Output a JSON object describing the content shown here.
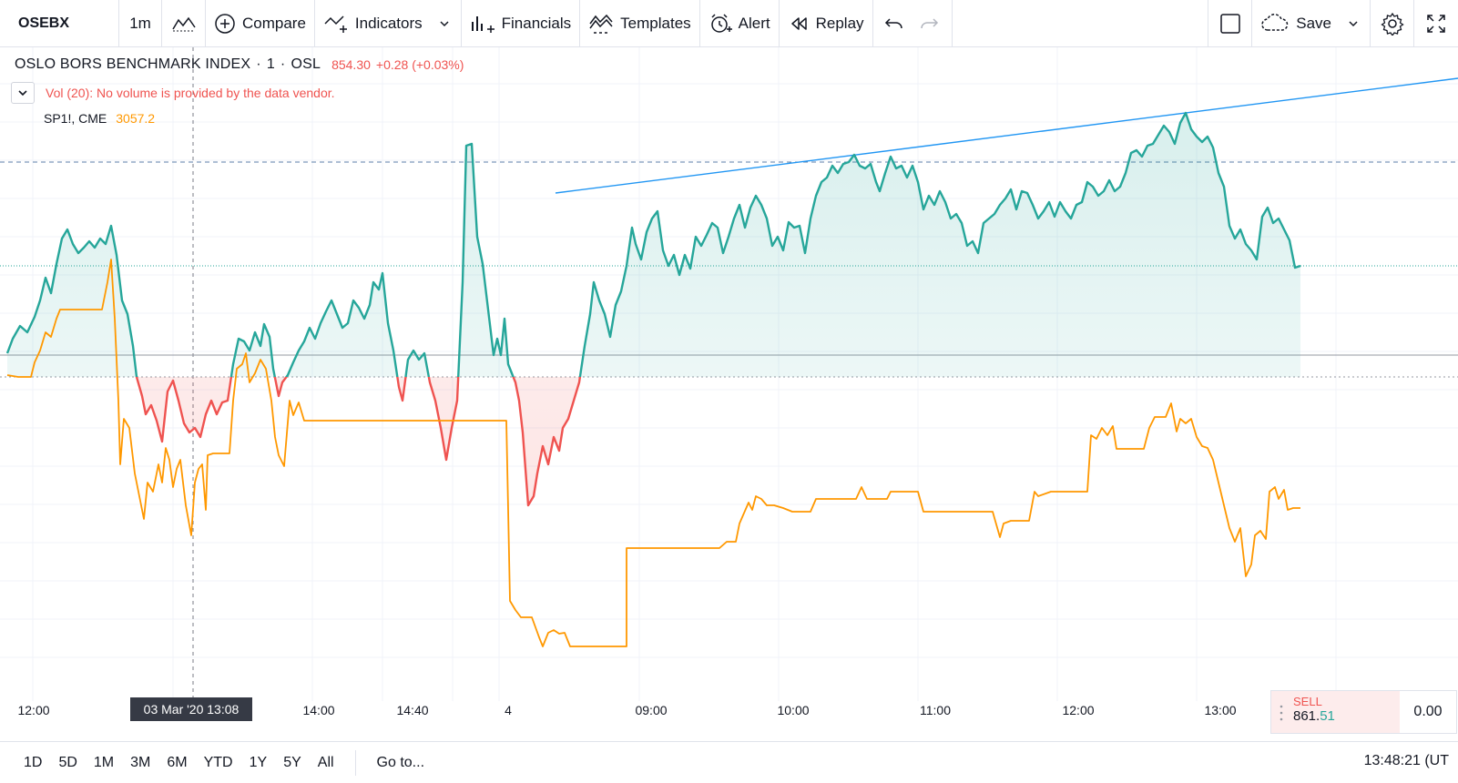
{
  "toolbar": {
    "symbol": "OSEBX",
    "interval": "1m",
    "compare": "Compare",
    "indicators": "Indicators",
    "financials": "Financials",
    "templates": "Templates",
    "alert": "Alert",
    "replay": "Replay",
    "save": "Save"
  },
  "legend": {
    "name": "OSLO BORS BENCHMARK INDEX",
    "sep1": "·",
    "interval": "1",
    "sep2": "·",
    "exchange": "OSL",
    "price": "854.30",
    "change": "+0.28 (+0.03%)",
    "volume_message": "Vol (20): No volume is provided by the data vendor.",
    "compare_symbol": "SP1!, CME",
    "compare_value": "3057.2"
  },
  "time_axis": {
    "labels": [
      "12:00",
      "14:00",
      "14:40",
      "4",
      "09:00",
      "10:00",
      "11:00",
      "12:00",
      "13:00"
    ],
    "crosshair": "03 Mar '20  13:08"
  },
  "sell": {
    "label": "SELL",
    "price_main": "861.",
    "price_frac": "51",
    "quantity": "0.00"
  },
  "bottom": {
    "ranges": [
      "1D",
      "5D",
      "1M",
      "3M",
      "6M",
      "YTD",
      "1Y",
      "5Y",
      "All"
    ],
    "goto": "Go to...",
    "clock": "13:48:21 (UT"
  },
  "colors": {
    "up_line": "#26a69a",
    "down_line": "#ef5350",
    "compare_line": "#ff9800",
    "trend_line": "#2196f3"
  }
}
